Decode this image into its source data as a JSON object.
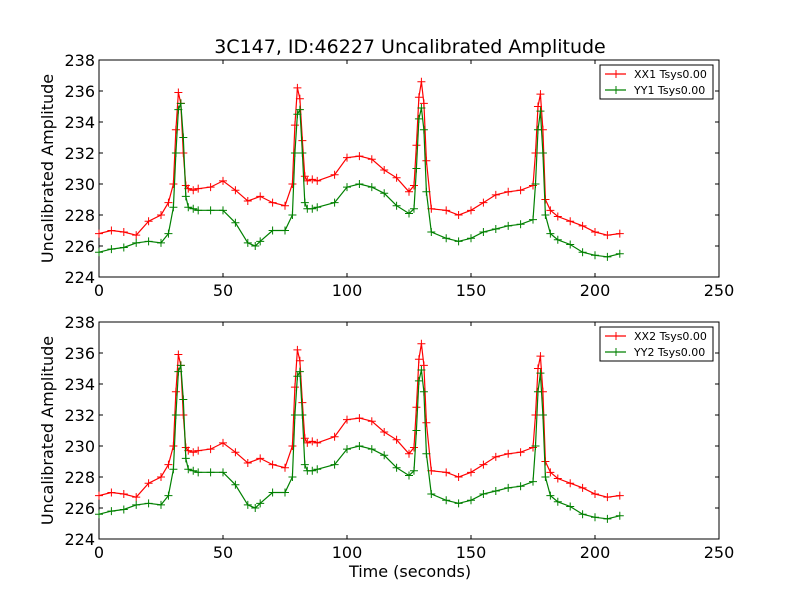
{
  "figure": {
    "title": "3C147, ID:46227 Uncalibrated Amplitude",
    "xlabel": "Time (seconds)"
  },
  "colors": {
    "red": "#ff0000",
    "green": "#008000"
  },
  "chart_data": [
    {
      "type": "line",
      "title": "3C147, ID:46227 Uncalibrated Amplitude",
      "xlabel": "",
      "ylabel": "Uncalibrated Amplitude",
      "xlim": [
        0,
        250
      ],
      "ylim": [
        224,
        238
      ],
      "xticks": [
        "0",
        "50",
        "100",
        "150",
        "200",
        "250"
      ],
      "yticks": [
        "224",
        "226",
        "228",
        "230",
        "232",
        "234",
        "236",
        "238"
      ],
      "marker": "+",
      "legend": "top-right",
      "grid": false,
      "series": [
        {
          "name": "XX1 Tsys0.00",
          "color": "#ff0000",
          "x": [
            0,
            5,
            10,
            15,
            20,
            25,
            28,
            30,
            31,
            32,
            33,
            34,
            35,
            36,
            38,
            40,
            45,
            50,
            55,
            60,
            65,
            70,
            75,
            78,
            79,
            80,
            81,
            82,
            83,
            84,
            86,
            88,
            95,
            100,
            105,
            110,
            115,
            120,
            125,
            127,
            128,
            129,
            130,
            131,
            132,
            134,
            140,
            145,
            150,
            155,
            160,
            165,
            170,
            175,
            176,
            177,
            178,
            179,
            180,
            182,
            185,
            190,
            195,
            200,
            205,
            210
          ],
          "y": [
            226.8,
            227.0,
            226.9,
            226.7,
            227.6,
            228.0,
            228.8,
            230.0,
            233.5,
            235.9,
            235.2,
            232.0,
            229.9,
            229.7,
            229.6,
            229.7,
            229.8,
            230.2,
            229.6,
            228.9,
            229.2,
            228.8,
            228.6,
            230.0,
            233.8,
            236.2,
            235.5,
            232.8,
            230.5,
            230.2,
            230.3,
            230.2,
            230.6,
            231.7,
            231.8,
            231.6,
            230.9,
            230.4,
            229.5,
            229.9,
            232.5,
            235.6,
            236.6,
            235.2,
            231.5,
            228.4,
            228.3,
            228.0,
            228.3,
            228.8,
            229.3,
            229.5,
            229.6,
            229.9,
            232.0,
            235.0,
            235.8,
            233.5,
            229.0,
            228.3,
            227.9,
            227.6,
            227.3,
            226.9,
            226.7,
            226.8
          ]
        },
        {
          "name": "YY1 Tsys0.00",
          "color": "#008000",
          "x": [
            0,
            5,
            10,
            15,
            20,
            25,
            28,
            30,
            31,
            32,
            33,
            34,
            35,
            36,
            38,
            40,
            45,
            50,
            55,
            60,
            63,
            65,
            70,
            75,
            78,
            79,
            80,
            81,
            82,
            83,
            84,
            86,
            88,
            95,
            100,
            105,
            110,
            115,
            120,
            125,
            127,
            128,
            129,
            130,
            131,
            132,
            134,
            140,
            145,
            150,
            155,
            160,
            165,
            170,
            175,
            176,
            177,
            178,
            179,
            180,
            182,
            185,
            190,
            195,
            200,
            205,
            210
          ],
          "y": [
            225.6,
            225.8,
            225.9,
            226.2,
            226.3,
            226.2,
            226.8,
            228.5,
            232.0,
            234.8,
            235.2,
            233.0,
            229.2,
            228.5,
            228.4,
            228.3,
            228.3,
            228.3,
            227.5,
            226.2,
            226.0,
            226.3,
            227.0,
            227.0,
            228.0,
            232.0,
            234.5,
            234.8,
            232.0,
            228.8,
            228.4,
            228.4,
            228.5,
            228.8,
            229.8,
            230.0,
            229.8,
            229.4,
            228.6,
            228.1,
            228.4,
            231.0,
            234.2,
            234.9,
            233.5,
            229.5,
            226.9,
            226.5,
            226.3,
            226.5,
            226.9,
            227.1,
            227.3,
            227.4,
            227.7,
            230.0,
            233.5,
            234.7,
            232.0,
            228.0,
            226.8,
            226.4,
            226.1,
            225.6,
            225.4,
            225.3,
            225.5
          ]
        }
      ]
    },
    {
      "type": "line",
      "title": "",
      "xlabel": "Time (seconds)",
      "ylabel": "Uncalibrated Amplitude",
      "xlim": [
        0,
        250
      ],
      "ylim": [
        224,
        238
      ],
      "xticks": [
        "0",
        "50",
        "100",
        "150",
        "200",
        "250"
      ],
      "yticks": [
        "224",
        "226",
        "228",
        "230",
        "232",
        "234",
        "236",
        "238"
      ],
      "marker": "+",
      "legend": "top-right",
      "grid": false,
      "series": [
        {
          "name": "XX2 Tsys0.00",
          "color": "#ff0000",
          "x": [
            0,
            5,
            10,
            15,
            20,
            25,
            28,
            30,
            31,
            32,
            33,
            34,
            35,
            36,
            38,
            40,
            45,
            50,
            55,
            60,
            65,
            70,
            75,
            78,
            79,
            80,
            81,
            82,
            83,
            84,
            86,
            88,
            95,
            100,
            105,
            110,
            115,
            120,
            125,
            127,
            128,
            129,
            130,
            131,
            132,
            134,
            140,
            145,
            150,
            155,
            160,
            165,
            170,
            175,
            176,
            177,
            178,
            179,
            180,
            182,
            185,
            190,
            195,
            200,
            205,
            210
          ],
          "y": [
            226.8,
            227.0,
            226.9,
            226.7,
            227.6,
            228.0,
            228.8,
            230.0,
            233.5,
            235.9,
            235.2,
            232.0,
            229.9,
            229.7,
            229.6,
            229.7,
            229.8,
            230.2,
            229.6,
            228.9,
            229.2,
            228.8,
            228.6,
            230.0,
            233.8,
            236.2,
            235.5,
            232.8,
            230.5,
            230.2,
            230.3,
            230.2,
            230.6,
            231.7,
            231.8,
            231.6,
            230.9,
            230.4,
            229.5,
            229.9,
            232.5,
            235.6,
            236.6,
            235.2,
            231.5,
            228.4,
            228.3,
            228.0,
            228.3,
            228.8,
            229.3,
            229.5,
            229.6,
            229.9,
            232.0,
            235.0,
            235.8,
            233.5,
            229.0,
            228.3,
            227.9,
            227.6,
            227.3,
            226.9,
            226.7,
            226.8
          ]
        },
        {
          "name": "YY2 Tsys0.00",
          "color": "#008000",
          "x": [
            0,
            5,
            10,
            15,
            20,
            25,
            28,
            30,
            31,
            32,
            33,
            34,
            35,
            36,
            38,
            40,
            45,
            50,
            55,
            60,
            63,
            65,
            70,
            75,
            78,
            79,
            80,
            81,
            82,
            83,
            84,
            86,
            88,
            95,
            100,
            105,
            110,
            115,
            120,
            125,
            127,
            128,
            129,
            130,
            131,
            132,
            134,
            140,
            145,
            150,
            155,
            160,
            165,
            170,
            175,
            176,
            177,
            178,
            179,
            180,
            182,
            185,
            190,
            195,
            200,
            205,
            210
          ],
          "y": [
            225.6,
            225.8,
            225.9,
            226.2,
            226.3,
            226.2,
            226.8,
            228.5,
            232.0,
            234.8,
            235.2,
            233.0,
            229.2,
            228.5,
            228.4,
            228.3,
            228.3,
            228.3,
            227.5,
            226.2,
            226.0,
            226.3,
            227.0,
            227.0,
            228.0,
            232.0,
            234.5,
            234.8,
            232.0,
            228.8,
            228.4,
            228.4,
            228.5,
            228.8,
            229.8,
            230.0,
            229.8,
            229.4,
            228.6,
            228.1,
            228.4,
            231.0,
            234.2,
            234.9,
            233.5,
            229.5,
            226.9,
            226.5,
            226.3,
            226.5,
            226.9,
            227.1,
            227.3,
            227.4,
            227.7,
            230.0,
            233.5,
            234.7,
            232.0,
            228.0,
            226.8,
            226.4,
            226.1,
            225.6,
            225.4,
            225.3,
            225.5
          ]
        }
      ]
    }
  ]
}
